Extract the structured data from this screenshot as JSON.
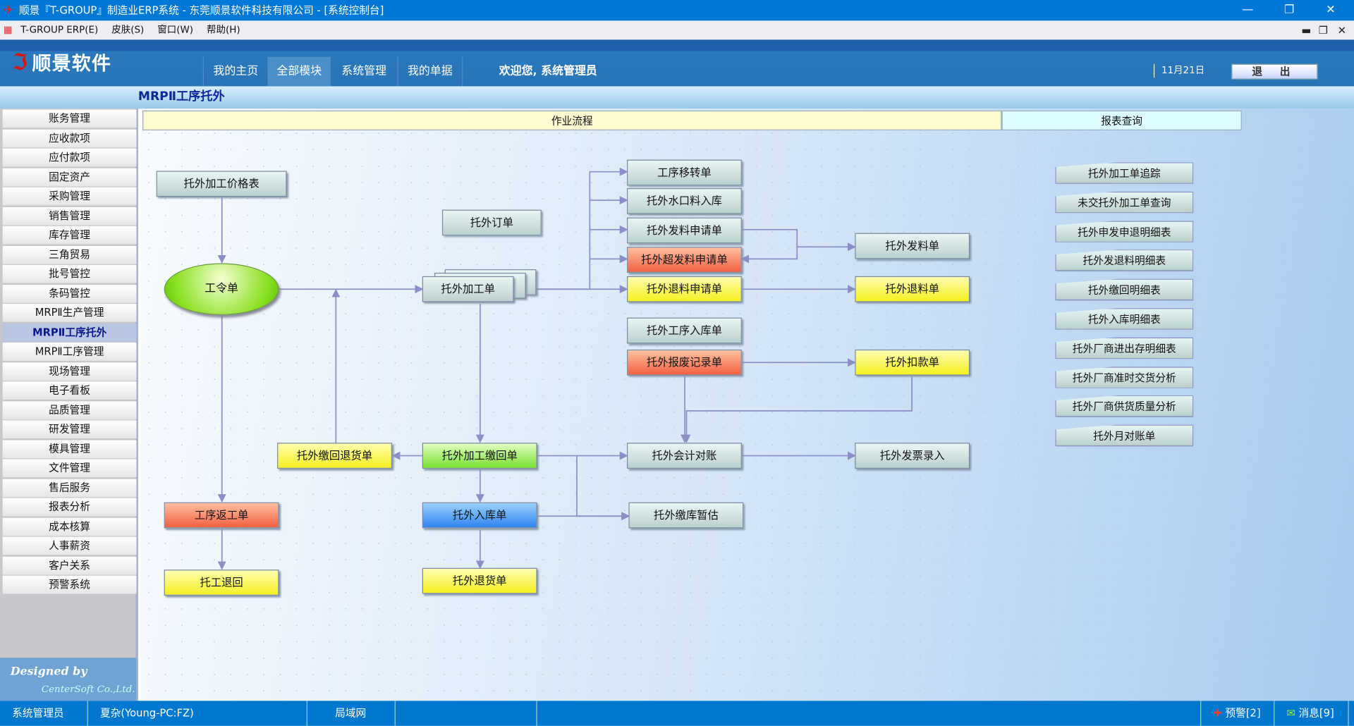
{
  "window": {
    "title": "顺景『T-GROUP』制造业ERP系统 - 东莞顺景软件科技有限公司 - [系统控制台]",
    "min": "—",
    "max": "❐",
    "close": "✕"
  },
  "menu": {
    "items": [
      "T-GROUP ERP(E)",
      "皮肤(S)",
      "窗口(W)",
      "帮助(H)"
    ]
  },
  "header": {
    "brand": "顺景软件",
    "nav": [
      "我的主页",
      "全部模块",
      "系统管理",
      "我的单据"
    ],
    "active_nav": "全部模块",
    "welcome": "欢迎您, 系统管理员",
    "date": "11月21日",
    "logout": "退 出"
  },
  "breadcrumb": "MRPⅡ工序托外",
  "sidebar": {
    "items": [
      "账务管理",
      "应收款项",
      "应付款项",
      "固定资产",
      "采购管理",
      "销售管理",
      "库存管理",
      "三角贸易",
      "批号管控",
      "条码管控",
      "MRPⅡ生产管理",
      "MRPⅡ工序托外",
      "MRPⅡ工序管理",
      "现场管理",
      "电子看板",
      "品质管理",
      "研发管理",
      "模具管理",
      "文件管理",
      "售后服务",
      "报表分析",
      "成本核算",
      "人事薪资",
      "客户关系",
      "预警系统"
    ],
    "selected": "MRPⅡ工序托外",
    "designed_by": "Designed by",
    "company": "CenterSoft Co.,Ltd."
  },
  "tabs": {
    "flow": "作业流程",
    "reports": "报表查询"
  },
  "flow": {
    "n_price": "托外加工价格表",
    "n_order": "托外订单",
    "n_workorder": "工令单",
    "n_process": "托外加工单",
    "n_transfer": "工序移转单",
    "n_nozzle": "托外水口料入库",
    "n_issue_req": "托外发料申请单",
    "n_over_req": "托外超发料申请单",
    "n_return_req": "托外退料申请单",
    "n_issue": "托外发料单",
    "n_return": "托外退料单",
    "n_proc_in": "托外工序入库单",
    "n_scrap": "托外报废记录单",
    "n_deduct": "托外扣款单",
    "n_back_return": "托外缴回退货单",
    "n_back": "托外加工缴回单",
    "n_reconcile": "托外会计对账",
    "n_invoice": "托外发票录入",
    "n_rework": "工序返工单",
    "n_stockin": "托外入库单",
    "n_estimate": "托外缴库暂估",
    "n_wreturn": "托工退回",
    "n_goods_return": "托外退货单"
  },
  "reports": [
    "托外加工单追踪",
    "未交托外加工单查询",
    "托外申发申退明细表",
    "托外发退料明细表",
    "托外缴回明细表",
    "托外入库明细表",
    "托外厂商进出存明细表",
    "托外厂商准时交货分析",
    "托外厂商供货质量分析",
    "托外月对账单"
  ],
  "status": {
    "user": "系统管理员",
    "host": "夏杂(Young-PC:FZ)",
    "network": "局域网",
    "alerts": "预警[2]",
    "messages": "消息[9]"
  },
  "colors": {
    "titlebar": "#0078d7",
    "yellow_node": "#f4f020",
    "orange_node": "#f06040",
    "green_node": "#78e030",
    "blue_node": "#2e86ee"
  }
}
